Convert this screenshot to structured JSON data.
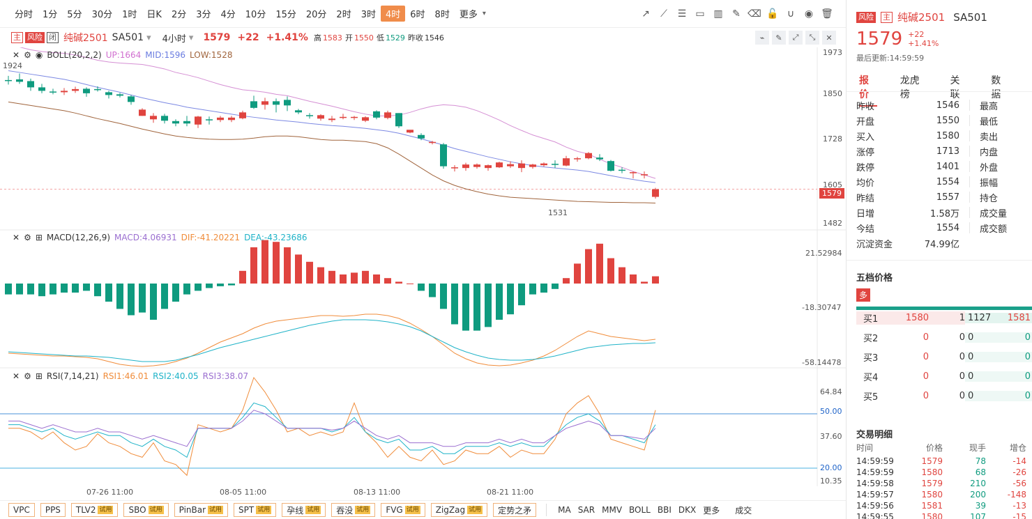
{
  "periods": [
    "分时",
    "1分",
    "5分",
    "30分",
    "1时",
    "日K",
    "2分",
    "3分",
    "4分",
    "10分",
    "15分",
    "20分",
    "2时",
    "3时",
    "4时",
    "6时",
    "8时",
    "更多"
  ],
  "active_period": "4时",
  "header": {
    "tag_main": "主",
    "tag_risk": "风险",
    "tag_closed": "闭",
    "name": "纯碱2501",
    "code": "SA501",
    "interval": "4小时",
    "price": "1579",
    "change": "+22",
    "change_pct": "+1.41%",
    "high_label": "高",
    "high": "1583",
    "open_label": "开",
    "open": "1550",
    "low_label": "低",
    "low": "1529",
    "prev_label": "昨收",
    "prev": "1546"
  },
  "boll": {
    "name": "BOLL(20,2,2)",
    "up": "UP:1664",
    "mid": "MID:1596",
    "low": "LOW:1528",
    "axis": [
      "1973",
      "1850",
      "1728",
      "1605",
      "1482"
    ],
    "current": "1579",
    "max_label": "1924",
    "min_label": "1531"
  },
  "macd": {
    "name": "MACD(12,26,9)",
    "macd": "MACD:4.06931",
    "dif": "DIF:-41.20221",
    "dea": "DEA:-43.23686",
    "axis": [
      "21.52984",
      "-18.30747",
      "-58.14478"
    ]
  },
  "rsi": {
    "name": "RSI(7,14,21)",
    "rsi1": "RSI1:46.01",
    "rsi2": "RSI2:40.05",
    "rsi3": "RSI3:38.07",
    "axis": [
      "64.84",
      "50.00",
      "37.60",
      "20.00",
      "10.35"
    ]
  },
  "dates": [
    "07-26 11:00",
    "08-05 11:00",
    "08-13 11:00",
    "08-21 11:00"
  ],
  "chart_data": {
    "type": "candlestick",
    "candles": [
      [
        1893,
        1890,
        1905,
        1880
      ],
      [
        1895,
        1888,
        1912,
        1882
      ],
      [
        1890,
        1872,
        1897,
        1862
      ],
      [
        1872,
        1862,
        1882,
        1855
      ],
      [
        1860,
        1858,
        1868,
        1852
      ],
      [
        1858,
        1862,
        1870,
        1850
      ],
      [
        1862,
        1867,
        1874,
        1856
      ],
      [
        1868,
        1855,
        1872,
        1845
      ],
      [
        1867,
        1866,
        1875,
        1860
      ],
      [
        1858,
        1850,
        1862,
        1840
      ],
      [
        1852,
        1848,
        1856,
        1843
      ],
      [
        1846,
        1830,
        1850,
        1822
      ],
      [
        1790,
        1808,
        1812,
        1790
      ],
      [
        1780,
        1790,
        1798,
        1770
      ],
      [
        1790,
        1776,
        1796,
        1768
      ],
      [
        1775,
        1768,
        1780,
        1760
      ],
      [
        1775,
        1768,
        1790,
        1760
      ],
      [
        1765,
        1788,
        1790,
        1755
      ],
      [
        1780,
        1777,
        1788,
        1765
      ],
      [
        1778,
        1785,
        1790,
        1772
      ],
      [
        1778,
        1785,
        1790,
        1772
      ],
      [
        1783,
        1800,
        1805,
        1780
      ],
      [
        1832,
        1813,
        1848,
        1810
      ],
      [
        1822,
        1832,
        1842,
        1808
      ],
      [
        1832,
        1822,
        1840,
        1800
      ],
      [
        1836,
        1820,
        1846,
        1804
      ],
      [
        1806,
        1800,
        1810,
        1795
      ],
      [
        1792,
        1790,
        1798,
        1782
      ],
      [
        1782,
        1792,
        1795,
        1776
      ],
      [
        1778,
        1782,
        1790,
        1772
      ],
      [
        1784,
        1787,
        1796,
        1780
      ],
      [
        1785,
        1787,
        1790,
        1778
      ],
      [
        1776,
        1786,
        1789,
        1772
      ],
      [
        1803,
        1785,
        1806,
        1780
      ],
      [
        1784,
        1800,
        1805,
        1780
      ],
      [
        1798,
        1760,
        1798,
        1755
      ],
      [
        1742,
        1750,
        1748,
        1740
      ],
      [
        1735,
        1725,
        1740,
        1720
      ],
      [
        1715,
        1715,
        1718,
        1708
      ],
      [
        1708,
        1645,
        1712,
        1638
      ],
      [
        1640,
        1642,
        1648,
        1630
      ],
      [
        1640,
        1650,
        1655,
        1632
      ],
      [
        1643,
        1650,
        1653,
        1638
      ],
      [
        1640,
        1648,
        1650,
        1632
      ],
      [
        1642,
        1656,
        1658,
        1640
      ],
      [
        1645,
        1651,
        1659,
        1640
      ],
      [
        1640,
        1653,
        1662,
        1628
      ],
      [
        1643,
        1650,
        1652,
        1638
      ],
      [
        1648,
        1653,
        1656,
        1644
      ],
      [
        1652,
        1650,
        1662,
        1640
      ],
      [
        1647,
        1668,
        1675,
        1645
      ],
      [
        1668,
        1668,
        1672,
        1658
      ],
      [
        1668,
        1683,
        1686,
        1665
      ],
      [
        1670,
        1665,
        1680,
        1660
      ],
      [
        1660,
        1632,
        1663,
        1630
      ],
      [
        1635,
        1634,
        1642,
        1625
      ],
      [
        1625,
        1628,
        1630,
        1610
      ],
      [
        1622,
        1622,
        1630,
        1610
      ],
      [
        1557,
        1579,
        1583,
        1552
      ]
    ]
  },
  "bottom": {
    "tags": [
      {
        "label": "VPC",
        "trial": ""
      },
      {
        "label": "PPS",
        "trial": ""
      },
      {
        "label": "TLV2",
        "trial": "试用"
      },
      {
        "label": "SBO",
        "trial": "试用"
      },
      {
        "label": "PinBar",
        "trial": "试用"
      },
      {
        "label": "SPT",
        "trial": "试用"
      },
      {
        "label": "孕线",
        "trial": "试用"
      },
      {
        "label": "吞没",
        "trial": "试用"
      },
      {
        "label": "FVG",
        "trial": "试用"
      },
      {
        "label": "ZigZag",
        "trial": "试用"
      },
      {
        "label": "定势之矛",
        "trial": ""
      }
    ],
    "indicators": [
      "MA",
      "SAR",
      "MMV",
      "BOLL",
      "BBI",
      "DKX",
      "更多"
    ],
    "last": "成交"
  },
  "panel": {
    "tag_risk": "风险",
    "tag_main": "主",
    "name": "纯碱2501",
    "code": "SA501",
    "price": "1579",
    "change": "+22",
    "change_pct": "+1.41%",
    "updated": "最后更新:14:59:59",
    "tabs": [
      "报价",
      "龙虎榜",
      "关联",
      "数据"
    ],
    "quote_left": [
      {
        "k": "昨收",
        "v": "1546",
        "c": ""
      },
      {
        "k": "开盘",
        "v": "1550",
        "c": "red"
      },
      {
        "k": "买入",
        "v": "1580",
        "c": ""
      },
      {
        "k": "涨停",
        "v": "1713",
        "c": ""
      },
      {
        "k": "跌停",
        "v": "1401",
        "c": ""
      },
      {
        "k": "均价",
        "v": "1554",
        "c": ""
      },
      {
        "k": "昨结",
        "v": "1557",
        "c": ""
      },
      {
        "k": "日增",
        "v": "1.58万",
        "c": ""
      },
      {
        "k": "今结",
        "v": "1554",
        "c": ""
      },
      {
        "k": "沉淀资金",
        "v": "74.99亿",
        "c": ""
      }
    ],
    "quote_right": [
      "最高",
      "最低",
      "卖出",
      "内盘",
      "外盘",
      "振幅",
      "持仓",
      "成交量",
      "成交额"
    ],
    "five_title": "五档价格",
    "five_badge": "多",
    "orderbook": [
      {
        "k": "买1",
        "p": "1580",
        "q": "1",
        "q2": "1127",
        "p2": "1581"
      },
      {
        "k": "买2",
        "p": "0",
        "q": "0",
        "q2": "0",
        "p2": "0"
      },
      {
        "k": "买3",
        "p": "0",
        "q": "0",
        "q2": "0",
        "p2": "0"
      },
      {
        "k": "买4",
        "p": "0",
        "q": "0",
        "q2": "0",
        "p2": "0"
      },
      {
        "k": "买5",
        "p": "0",
        "q": "0",
        "q2": "0",
        "p2": "0"
      }
    ],
    "trades_title": "交易明细",
    "trades_head": [
      "时间",
      "价格",
      "现手",
      "增仓"
    ],
    "trades": [
      [
        "14:59:59",
        "1579",
        "78",
        "-14"
      ],
      [
        "14:59:59",
        "1580",
        "68",
        "-26"
      ],
      [
        "14:59:58",
        "1579",
        "210",
        "-56"
      ],
      [
        "14:59:57",
        "1580",
        "200",
        "-148"
      ],
      [
        "14:59:56",
        "1581",
        "39",
        "-13"
      ],
      [
        "14:59:55",
        "1580",
        "107",
        "-15"
      ]
    ]
  }
}
